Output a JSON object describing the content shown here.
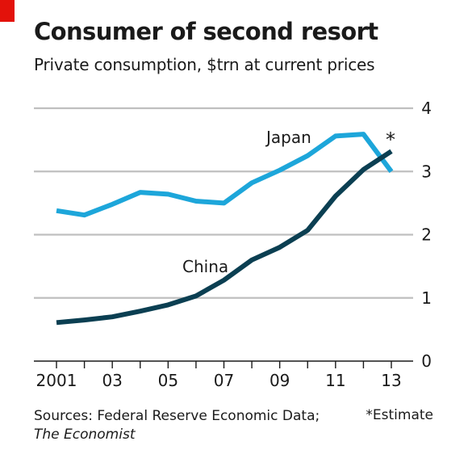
{
  "title": "Consumer of second resort",
  "subtitle": "Private consumption, $trn at current prices",
  "source": {
    "line1": "Sources: Federal Reserve Economic Data;",
    "line2": "The Economist"
  },
  "footnote": "*Estimate",
  "colors": {
    "brand_red": "#e3120b",
    "japan": "#1da6da",
    "china": "#0b3f52",
    "gridline": "#bfbfbf",
    "baseline": "#1a1a1a"
  },
  "chart_data": {
    "type": "line",
    "title": "Consumer of second resort",
    "subtitle": "Private consumption, $trn at current prices",
    "x": [
      2001,
      2002,
      2003,
      2004,
      2005,
      2006,
      2007,
      2008,
      2009,
      2010,
      2011,
      2012,
      2013
    ],
    "x_tick_labels": [
      {
        "x": 2001,
        "label": "2001"
      },
      {
        "x": 2003,
        "label": "03"
      },
      {
        "x": 2005,
        "label": "05"
      },
      {
        "x": 2007,
        "label": "07"
      },
      {
        "x": 2009,
        "label": "09"
      },
      {
        "x": 2011,
        "label": "11"
      },
      {
        "x": 2013,
        "label": "13"
      }
    ],
    "y_ticks": [
      0,
      1,
      2,
      3,
      4
    ],
    "xlim": [
      2001,
      2013
    ],
    "ylim": [
      0,
      4
    ],
    "y_axis_side": "right",
    "grid": true,
    "series": [
      {
        "name": "Japan",
        "color": "#1da6da",
        "values": [
          2.38,
          2.31,
          2.48,
          2.67,
          2.64,
          2.53,
          2.5,
          2.82,
          3.02,
          3.25,
          3.56,
          3.59,
          3.0
        ]
      },
      {
        "name": "China",
        "color": "#0b3f52",
        "values": [
          0.61,
          0.65,
          0.7,
          0.79,
          0.89,
          1.03,
          1.28,
          1.6,
          1.8,
          2.07,
          2.61,
          3.03,
          3.32
        ]
      }
    ],
    "annotations": [
      {
        "text": "*",
        "x": 2013,
        "series": "China",
        "meaning": "Estimate"
      }
    ]
  }
}
